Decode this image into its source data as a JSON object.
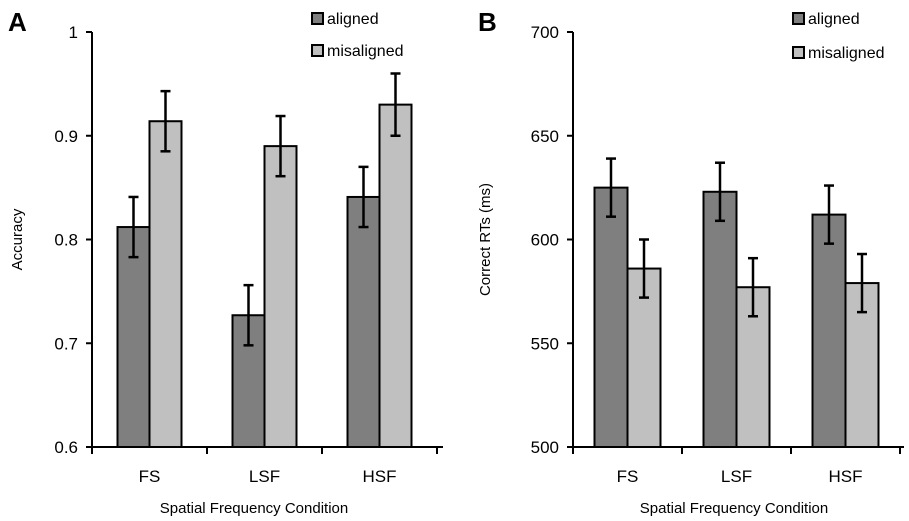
{
  "chart_data": [
    {
      "panel": "A",
      "type": "bar",
      "categories": [
        "FS",
        "LSF",
        "HSF"
      ],
      "series": [
        {
          "name": "aligned",
          "color": "#7f7f7f",
          "values": [
            0.812,
            0.727,
            0.841
          ],
          "errors": [
            0.029,
            0.029,
            0.029
          ]
        },
        {
          "name": "misaligned",
          "color": "#c0c0c0",
          "values": [
            0.914,
            0.89,
            0.93
          ],
          "errors": [
            0.029,
            0.029,
            0.03
          ]
        }
      ],
      "xlabel": "Spatial Frequency Condition",
      "ylabel": "Accuracy",
      "ylim": [
        0.6,
        1.0
      ],
      "yticks": [
        0.6,
        0.7,
        0.8,
        0.9,
        1.0
      ],
      "ytick_labels": [
        "0.6",
        "0.7",
        "0.8",
        "0.9",
        "1"
      ],
      "grid": false,
      "legend_position": "top-right"
    },
    {
      "panel": "B",
      "type": "bar",
      "categories": [
        "FS",
        "LSF",
        "HSF"
      ],
      "series": [
        {
          "name": "aligned",
          "color": "#7f7f7f",
          "values": [
            625,
            623,
            612
          ],
          "errors": [
            14,
            14,
            14
          ]
        },
        {
          "name": "misaligned",
          "color": "#c0c0c0",
          "values": [
            586,
            577,
            579
          ],
          "errors": [
            14,
            14,
            14
          ]
        }
      ],
      "xlabel": "Spatial Frequency Condition",
      "ylabel": "Correct RTs (ms)",
      "ylim": [
        500,
        700
      ],
      "yticks": [
        500,
        550,
        600,
        650,
        700
      ],
      "ytick_labels": [
        "500",
        "550",
        "600",
        "650",
        "700"
      ],
      "grid": false,
      "legend_position": "top-right"
    }
  ]
}
